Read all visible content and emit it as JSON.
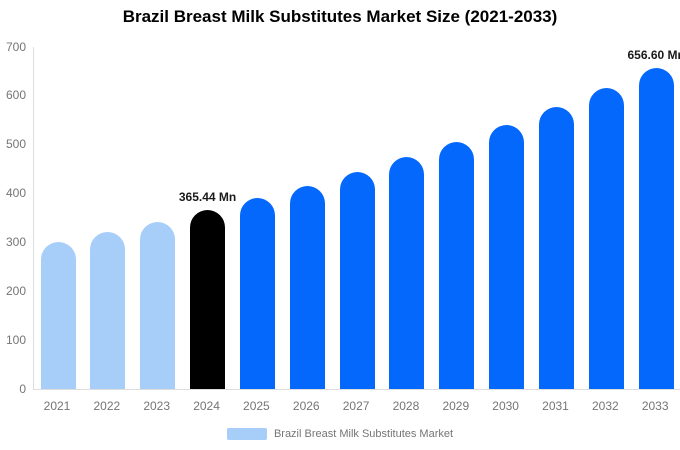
{
  "title": "Brazil Breast Milk Substitutes Market Size (2021-2033)",
  "chart_data": {
    "type": "bar",
    "title": "Brazil Breast Milk Substitutes Market Size (2021-2033)",
    "categories": [
      "2021",
      "2022",
      "2023",
      "2024",
      "2025",
      "2026",
      "2027",
      "2028",
      "2029",
      "2030",
      "2031",
      "2032",
      "2033"
    ],
    "values": [
      300.6,
      320.9,
      342.4,
      365.44,
      390.0,
      416.3,
      444.3,
      474.2,
      506.1,
      540.2,
      576.6,
      615.4,
      656.6
    ],
    "bar_roles": [
      "past",
      "past",
      "past",
      "highlight",
      "forecast",
      "forecast",
      "forecast",
      "forecast",
      "forecast",
      "forecast",
      "forecast",
      "forecast",
      "forecast"
    ],
    "value_labels": [
      {
        "index": 3,
        "text": "365.44 Mn"
      },
      {
        "index": 12,
        "text": "656.60 Mn"
      }
    ],
    "ylim": [
      0,
      700
    ],
    "yticks": [
      0,
      100,
      200,
      300,
      400,
      500,
      600,
      700
    ],
    "grid": false,
    "legend": "Brazil Breast Milk Substitutes Market",
    "legend_position": "bottom",
    "colors": {
      "past": "#a6cef9",
      "forecast": "#0568fd",
      "highlight": "#000000",
      "axis_line": "#dddddd",
      "tick_text": "#757575",
      "value_label_text": "#1a1a1a"
    }
  }
}
